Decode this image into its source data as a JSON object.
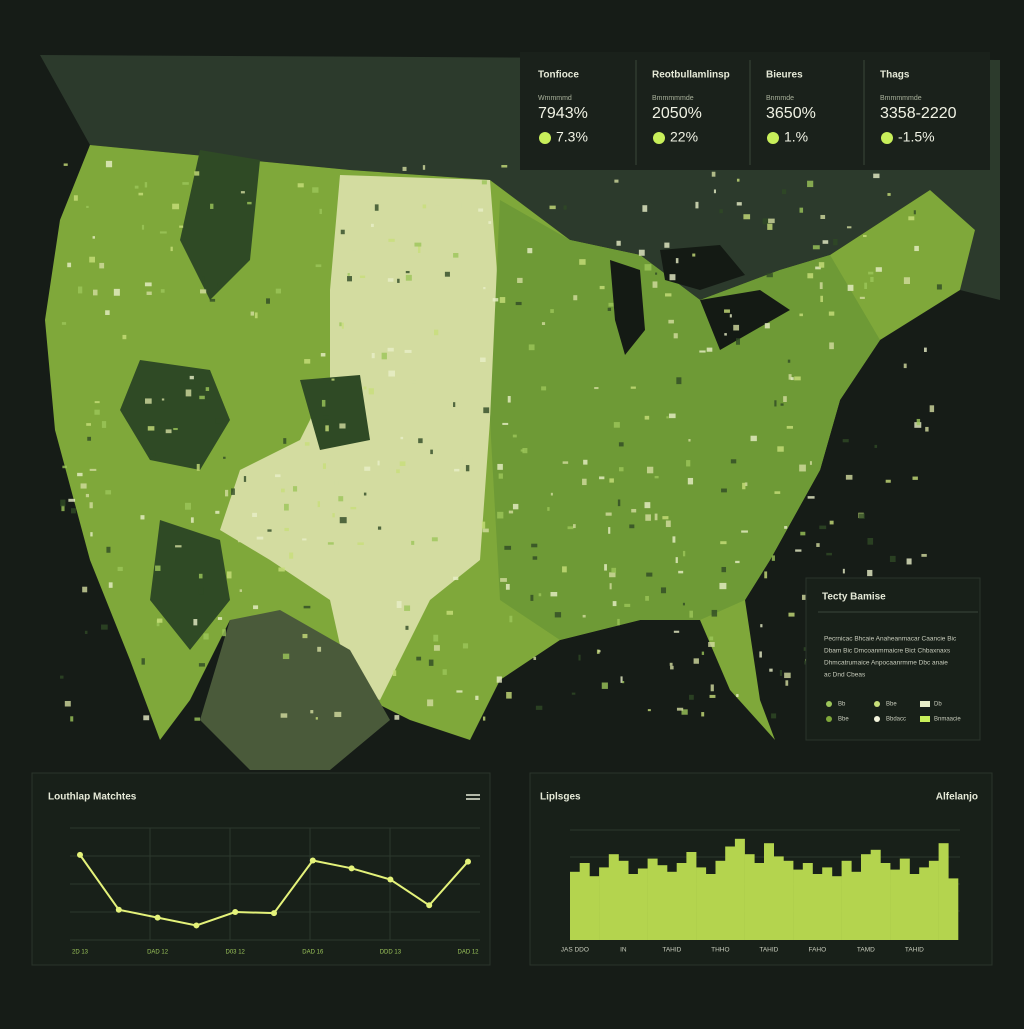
{
  "header": {
    "stats": [
      {
        "label": "Tonfioce",
        "sublabel": "Wmmmmd",
        "value": "7943%",
        "change": "7.3%"
      },
      {
        "label": "Reotbullamlinsp",
        "sublabel": "Bmmmmmde",
        "value": "2050%",
        "change": "22%"
      },
      {
        "label": "Bieures",
        "sublabel": "Bnmmde",
        "value": "3650%",
        "change": "1.%"
      },
      {
        "label": "Thags",
        "sublabel": "Bmmmmmde",
        "value": "3358-2220",
        "change": "-1.5%"
      }
    ]
  },
  "legend_panel": {
    "title": "Tecty Bamise",
    "text": [
      "Pecrnicac Bhcaie Anaheanmacar Caancie Bic",
      "Dbam Bic Dmcoanmmaicre Bict Chbaxnaxs",
      "Dhmcatrumaice Anpocaanrmme Dbc anaie",
      "ac Dnd Cbeas"
    ],
    "items": [
      {
        "label": "Bb",
        "color": "#9cc55a"
      },
      {
        "label": "Bbe",
        "color": "#c8df7a"
      },
      {
        "label": "Db",
        "color": "#e8efc8"
      },
      {
        "label": "Bbe",
        "color": "#7fa83a"
      },
      {
        "label": "Bbdacc",
        "color": "#f2f4dc"
      },
      {
        "label": "Bnmaacie",
        "color": "#c8ef5a"
      }
    ]
  },
  "chart_data": [
    {
      "type": "line",
      "title": "Louthlap Matchtes",
      "categories": [
        "2D 13",
        null,
        "DAD 12",
        null,
        "D03 12",
        null,
        "DAD 16",
        null,
        "DDD 13",
        null,
        "DAD 12"
      ],
      "series": [
        {
          "name": "Matchtes",
          "color": "#e4f27a",
          "values": [
            76,
            27,
            20,
            13,
            25,
            24,
            71,
            64,
            54,
            31,
            70
          ]
        }
      ],
      "ylim": [
        0,
        100
      ]
    },
    {
      "type": "bar",
      "title": "Liplsges",
      "subtitle": "Alfelanjo",
      "categories": [
        "JAS DDO",
        null,
        null,
        null,
        null,
        "IN",
        null,
        null,
        null,
        null,
        "TAHID",
        null,
        null,
        null,
        null,
        "THHO",
        null,
        null,
        null,
        null,
        "TAHID",
        null,
        null,
        null,
        null,
        "FAHO",
        null,
        null,
        null,
        null,
        "TAMD",
        null,
        null,
        null,
        null,
        "TAHID",
        null,
        null,
        null,
        null
      ],
      "values": [
        62,
        70,
        58,
        66,
        78,
        72,
        60,
        65,
        74,
        68,
        62,
        70,
        80,
        66,
        60,
        72,
        85,
        92,
        78,
        70,
        88,
        76,
        72,
        64,
        70,
        60,
        66,
        58,
        72,
        62,
        78,
        82,
        70,
        64,
        74,
        60,
        66,
        72,
        88,
        56
      ],
      "color": "#b4d44e",
      "ylim": [
        0,
        100
      ]
    }
  ]
}
